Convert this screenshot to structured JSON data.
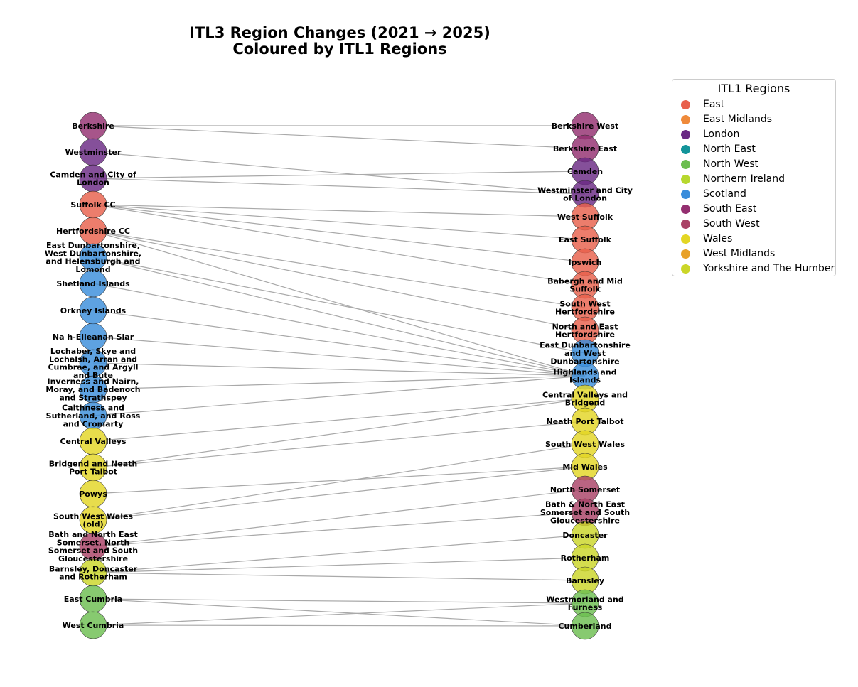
{
  "title": [
    "ITL3 Region Changes (2021 → 2025)",
    "Coloured by ITL1 Regions"
  ],
  "legend": {
    "title": "ITL1 Regions",
    "items": [
      {
        "label": "East",
        "color": "#e8604c"
      },
      {
        "label": "East Midlands",
        "color": "#ef8a3a"
      },
      {
        "label": "London",
        "color": "#6a2a84"
      },
      {
        "label": "North East",
        "color": "#13949a"
      },
      {
        "label": "North West",
        "color": "#6cbe50"
      },
      {
        "label": "Northern Ireland",
        "color": "#b7d82e"
      },
      {
        "label": "Scotland",
        "color": "#3a8ddb"
      },
      {
        "label": "South East",
        "color": "#942f70"
      },
      {
        "label": "South West",
        "color": "#a94266"
      },
      {
        "label": "Wales",
        "color": "#e3d624"
      },
      {
        "label": "West Midlands",
        "color": "#e8a128"
      },
      {
        "label": "Yorkshire and The Humber",
        "color": "#cbd628"
      }
    ]
  },
  "nodes_2021": [
    {
      "id": "berkshire",
      "label": "Berkshire",
      "region": "South East"
    },
    {
      "id": "westminster",
      "label": "Westminster",
      "region": "London"
    },
    {
      "id": "camden-city",
      "label": "Camden and City of London",
      "region": "London"
    },
    {
      "id": "suffolk-cc",
      "label": "Suffolk CC",
      "region": "East"
    },
    {
      "id": "herts-cc",
      "label": "Hertfordshire CC",
      "region": "East"
    },
    {
      "id": "east-dunbartonshire-old",
      "label": "East Dunbartonshire, West Dunbartonshire, and Helensburgh and Lomond",
      "region": "Scotland"
    },
    {
      "id": "shetland",
      "label": "Shetland Islands",
      "region": "Scotland"
    },
    {
      "id": "orkney",
      "label": "Orkney Islands",
      "region": "Scotland"
    },
    {
      "id": "eilean-siar",
      "label": "Na h-Eileanan Siar",
      "region": "Scotland"
    },
    {
      "id": "lochaber",
      "label": "Lochaber, Skye and Lochalsh, Arran and Cumbrae, and Argyll and Bute",
      "region": "Scotland"
    },
    {
      "id": "inverness",
      "label": "Inverness and Nairn, Moray, and Badenoch and Strathspey",
      "region": "Scotland"
    },
    {
      "id": "caithness",
      "label": "Caithness and Sutherland, and Ross and Cromarty",
      "region": "Scotland"
    },
    {
      "id": "central-valleys",
      "label": "Central Valleys",
      "region": "Wales"
    },
    {
      "id": "bridgend-neath",
      "label": "Bridgend and Neath Port Talbot",
      "region": "Wales"
    },
    {
      "id": "powys",
      "label": "Powys",
      "region": "Wales"
    },
    {
      "id": "sw-wales-old",
      "label": "South West Wales (old)",
      "region": "Wales"
    },
    {
      "id": "banes-old",
      "label": "Bath and North East Somerset, North Somerset and South Gloucestershire",
      "region": "South West"
    },
    {
      "id": "barnsley-doncaster",
      "label": "Barnsley, Doncaster and Rotherham",
      "region": "Yorkshire and The Humber"
    },
    {
      "id": "east-cumbria",
      "label": "East Cumbria",
      "region": "North West"
    },
    {
      "id": "west-cumbria",
      "label": "West Cumbria",
      "region": "North West"
    }
  ],
  "nodes_2025": [
    {
      "id": "berkshire-west",
      "label": "Berkshire West",
      "region": "South East"
    },
    {
      "id": "berkshire-east",
      "label": "Berkshire East",
      "region": "South East"
    },
    {
      "id": "camden",
      "label": "Camden",
      "region": "London"
    },
    {
      "id": "westminster-city",
      "label": "Westminster and City of London",
      "region": "London"
    },
    {
      "id": "west-suffolk",
      "label": "West Suffolk",
      "region": "East"
    },
    {
      "id": "east-suffolk",
      "label": "East Suffolk",
      "region": "East"
    },
    {
      "id": "ipswich",
      "label": "Ipswich",
      "region": "East"
    },
    {
      "id": "babergh",
      "label": "Babergh and Mid Suffolk",
      "region": "East"
    },
    {
      "id": "sw-herts",
      "label": "South West Hertfordshire",
      "region": "East"
    },
    {
      "id": "ne-herts",
      "label": "North and East Hertfordshire",
      "region": "East"
    },
    {
      "id": "east-dunbartonshire-new",
      "label": "East Dunbartonshire and West Dunbartonshire",
      "region": "Scotland"
    },
    {
      "id": "highlands-islands",
      "label": "Highlands and Islands",
      "region": "Scotland"
    },
    {
      "id": "central-valleys-bridgend",
      "label": "Central Valleys and Bridgend",
      "region": "Wales"
    },
    {
      "id": "neath-pt",
      "label": "Neath Port Talbot",
      "region": "Wales"
    },
    {
      "id": "sw-wales",
      "label": "South West Wales",
      "region": "Wales"
    },
    {
      "id": "mid-wales",
      "label": "Mid Wales",
      "region": "Wales"
    },
    {
      "id": "north-somerset",
      "label": "North Somerset",
      "region": "South West"
    },
    {
      "id": "banes-new",
      "label": "Bath & North East Somerset and South Gloucestershire",
      "region": "South West"
    },
    {
      "id": "doncaster",
      "label": "Doncaster",
      "region": "Yorkshire and The Humber"
    },
    {
      "id": "rotherham",
      "label": "Rotherham",
      "region": "Yorkshire and The Humber"
    },
    {
      "id": "barnsley",
      "label": "Barnsley",
      "region": "Yorkshire and The Humber"
    },
    {
      "id": "westmorland",
      "label": "Westmorland and Furness",
      "region": "North West"
    },
    {
      "id": "cumberland",
      "label": "Cumberland",
      "region": "North West"
    }
  ],
  "edges": [
    [
      "berkshire",
      "berkshire-west"
    ],
    [
      "berkshire",
      "berkshire-east"
    ],
    [
      "westminster",
      "westminster-city"
    ],
    [
      "camden-city",
      "camden"
    ],
    [
      "camden-city",
      "westminster-city"
    ],
    [
      "suffolk-cc",
      "west-suffolk"
    ],
    [
      "suffolk-cc",
      "east-suffolk"
    ],
    [
      "suffolk-cc",
      "ipswich"
    ],
    [
      "suffolk-cc",
      "babergh"
    ],
    [
      "herts-cc",
      "sw-herts"
    ],
    [
      "herts-cc",
      "ne-herts"
    ],
    [
      "herts-cc",
      "highlands-islands"
    ],
    [
      "east-dunbartonshire-old",
      "east-dunbartonshire-new"
    ],
    [
      "east-dunbartonshire-old",
      "highlands-islands"
    ],
    [
      "shetland",
      "highlands-islands"
    ],
    [
      "orkney",
      "highlands-islands"
    ],
    [
      "eilean-siar",
      "highlands-islands"
    ],
    [
      "lochaber",
      "highlands-islands"
    ],
    [
      "inverness",
      "highlands-islands"
    ],
    [
      "caithness",
      "highlands-islands"
    ],
    [
      "central-valleys",
      "central-valleys-bridgend"
    ],
    [
      "bridgend-neath",
      "central-valleys-bridgend"
    ],
    [
      "bridgend-neath",
      "neath-pt"
    ],
    [
      "powys",
      "mid-wales"
    ],
    [
      "sw-wales-old",
      "sw-wales"
    ],
    [
      "sw-wales-old",
      "mid-wales"
    ],
    [
      "banes-old",
      "north-somerset"
    ],
    [
      "banes-old",
      "banes-new"
    ],
    [
      "barnsley-doncaster",
      "doncaster"
    ],
    [
      "barnsley-doncaster",
      "rotherham"
    ],
    [
      "barnsley-doncaster",
      "barnsley"
    ],
    [
      "east-cumbria",
      "westmorland"
    ],
    [
      "east-cumbria",
      "cumberland"
    ],
    [
      "west-cumbria",
      "westmorland"
    ],
    [
      "west-cumbria",
      "cumberland"
    ]
  ]
}
